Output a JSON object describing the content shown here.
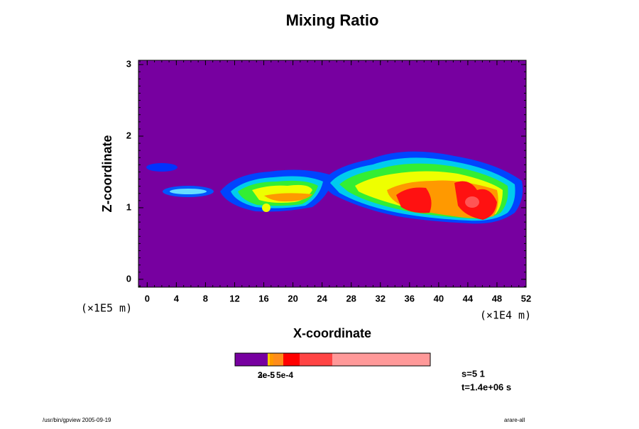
{
  "chart_data": {
    "type": "contour",
    "title": "Mixing Ratio",
    "x_label": "X-coordinate",
    "y_label": "Z-coordinate",
    "x_unit": "(×1E4 m)",
    "y_unit": "(×1E5 m)",
    "xlim": [
      -1.2,
      52
    ],
    "xticks": [
      0,
      4,
      8,
      12,
      16,
      20,
      24,
      28,
      32,
      36,
      40,
      44,
      48,
      52
    ],
    "ylim": [
      -0.11,
      3.06
    ],
    "yticks": [
      0,
      1,
      2,
      3
    ],
    "background_color": "#7700a0",
    "colorbar": {
      "colors": [
        "#7700a0",
        "#ffcc00",
        "#ff9900",
        "#ff8c1a",
        "#ff0000",
        "#ff4444",
        "#ff9999"
      ],
      "labels": [
        "2e-5",
        "3e-5",
        "5e-4"
      ]
    },
    "info": [
      "s=5 1",
      "t=1.4e+06 s"
    ],
    "footer_left": "/usr/bin/gpview 2005-09-19",
    "footer_right": "arare-all"
  }
}
